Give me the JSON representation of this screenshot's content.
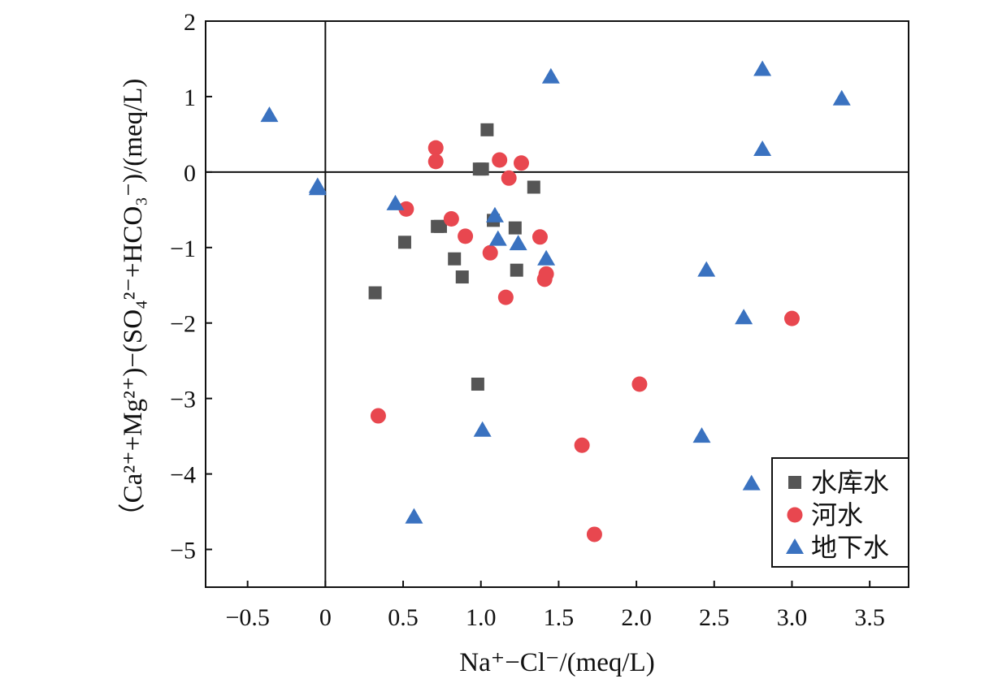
{
  "chart_data": {
    "type": "scatter",
    "xlabel": "Na⁺−Cl⁻/(meq/L)",
    "ylabel": "（Ca²⁺+Mg²⁺)−(SO₄²⁻+HCO₃⁻)/(meq/L)",
    "xlim": [
      -0.77,
      3.75
    ],
    "ylim": [
      -5.5,
      2.0
    ],
    "x_ticks": [
      -0.5,
      0,
      0.5,
      1.0,
      1.5,
      2.0,
      2.5,
      3.0,
      3.5
    ],
    "x_tick_labels": [
      "−0.5",
      "0",
      "0.5",
      "1.0",
      "1.5",
      "2.0",
      "2.5",
      "3.0",
      "3.5"
    ],
    "y_ticks": [
      -5,
      -4,
      -3,
      -2,
      -1,
      0,
      1,
      2
    ],
    "y_tick_labels": [
      "−5",
      "−4",
      "−3",
      "−2",
      "−1",
      "0",
      "1",
      "2"
    ],
    "reference_lines": {
      "x": 0,
      "y": 0
    },
    "grid": false,
    "legend_position": "bottom-right",
    "series": [
      {
        "name": "水库水",
        "marker": "square",
        "color": "#555555",
        "points": [
          [
            0.32,
            -1.6
          ],
          [
            0.51,
            -0.93
          ],
          [
            0.72,
            -0.72
          ],
          [
            0.74,
            -0.72
          ],
          [
            0.83,
            -1.15
          ],
          [
            0.88,
            -1.39
          ],
          [
            0.98,
            -2.81
          ],
          [
            0.99,
            0.04
          ],
          [
            1.01,
            0.04
          ],
          [
            1.04,
            0.56
          ],
          [
            1.08,
            -0.64
          ],
          [
            1.22,
            -0.74
          ],
          [
            1.23,
            -1.3
          ],
          [
            1.34,
            -0.2
          ]
        ]
      },
      {
        "name": "河水",
        "marker": "circle",
        "color": "#e8474f",
        "points": [
          [
            0.34,
            -3.23
          ],
          [
            0.52,
            -0.49
          ],
          [
            0.71,
            0.32
          ],
          [
            0.71,
            0.14
          ],
          [
            0.81,
            -0.62
          ],
          [
            0.9,
            -0.85
          ],
          [
            1.06,
            -1.07
          ],
          [
            1.12,
            0.16
          ],
          [
            1.16,
            -1.66
          ],
          [
            1.18,
            -0.08
          ],
          [
            1.26,
            0.12
          ],
          [
            1.38,
            -0.86
          ],
          [
            1.41,
            -1.42
          ],
          [
            1.42,
            -1.35
          ],
          [
            1.65,
            -3.62
          ],
          [
            1.73,
            -4.8
          ],
          [
            2.02,
            -2.81
          ],
          [
            3.0,
            -1.94
          ]
        ]
      },
      {
        "name": "地下水",
        "marker": "triangle",
        "color": "#3a72c0",
        "points": [
          [
            -0.36,
            0.75
          ],
          [
            -0.05,
            -0.19
          ],
          [
            -0.05,
            -0.22
          ],
          [
            0.45,
            -0.42
          ],
          [
            0.57,
            -4.57
          ],
          [
            1.01,
            -3.42
          ],
          [
            1.09,
            -0.58
          ],
          [
            1.11,
            -0.89
          ],
          [
            1.24,
            -0.95
          ],
          [
            1.42,
            -1.15
          ],
          [
            1.45,
            1.26
          ],
          [
            2.42,
            -3.5
          ],
          [
            2.45,
            -1.3
          ],
          [
            2.69,
            -1.93
          ],
          [
            2.74,
            -4.13
          ],
          [
            2.81,
            1.36
          ],
          [
            2.81,
            0.3
          ],
          [
            3.32,
            0.97
          ]
        ]
      }
    ]
  }
}
